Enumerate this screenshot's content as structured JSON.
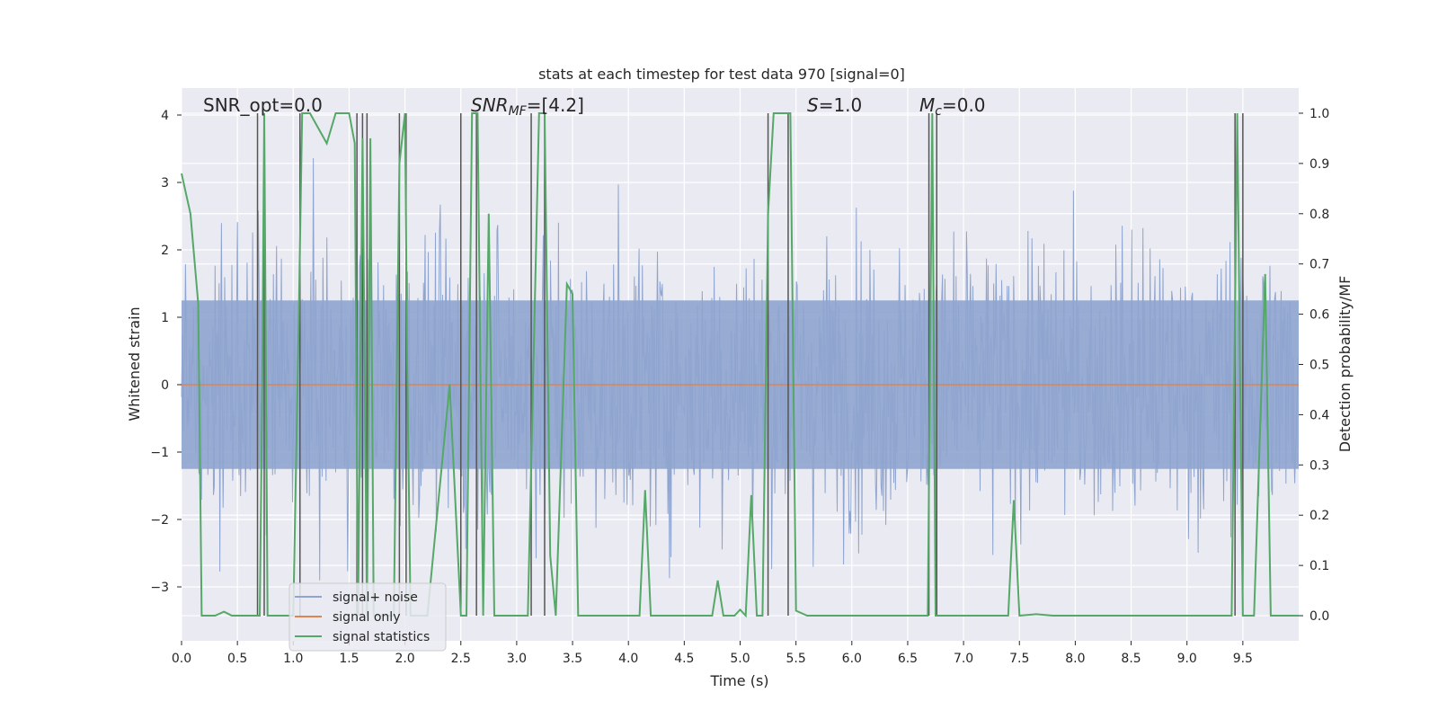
{
  "chart_data": {
    "type": "line",
    "title": "stats at each timestep for test data 970 [signal=0]",
    "xlabel": "Time (s)",
    "ylabel_left": "Whitened strain",
    "ylabel_right": "Detection probability/MF",
    "xlim": [
      0.0,
      10.0
    ],
    "ylim_left": [
      -3.8,
      4.4
    ],
    "ylim_right": [
      -0.05,
      1.05
    ],
    "x_ticks": [
      0.0,
      0.5,
      1.0,
      1.5,
      2.0,
      2.5,
      3.0,
      3.5,
      4.0,
      4.5,
      5.0,
      5.5,
      6.0,
      6.5,
      7.0,
      7.5,
      8.0,
      8.5,
      9.0,
      9.5
    ],
    "x_tick_labels": [
      "0.0",
      "0.5",
      "1.0",
      "1.5",
      "2.0",
      "2.5",
      "3.0",
      "3.5",
      "4.0",
      "4.5",
      "5.0",
      "5.5",
      "6.0",
      "6.5",
      "7.0",
      "7.5",
      "8.0",
      "8.5",
      "9.0",
      "9.5"
    ],
    "y_left_ticks": [
      -3,
      -2,
      -1,
      0,
      1,
      2,
      3,
      4
    ],
    "y_left_tick_labels": [
      "−3",
      "−2",
      "−1",
      "0",
      "1",
      "2",
      "3",
      "4"
    ],
    "y_right_ticks": [
      0.0,
      0.1,
      0.2,
      0.3,
      0.4,
      0.5,
      0.6,
      0.7,
      0.8,
      0.9,
      1.0
    ],
    "y_right_tick_labels": [
      "0.0",
      "0.1",
      "0.2",
      "0.3",
      "0.4",
      "0.5",
      "0.6",
      "0.7",
      "0.8",
      "0.9",
      "1.0"
    ],
    "grid": true,
    "legend_position": "lower-left",
    "annotations": {
      "snr_opt": "SNR_opt=0.0",
      "snr_mf_prefix": "SNR",
      "snr_mf_sub": "MF",
      "snr_mf_suffix": "=[4.2]",
      "s_prefix": "S",
      "s_suffix": "=1.0",
      "mc_prefix": "M",
      "mc_sub": "c",
      "mc_suffix": "=0.0"
    },
    "series": [
      {
        "name": "signal+ noise",
        "color": "#8fa5cf",
        "axis": "left",
        "noise_band": {
          "center": 0.0,
          "typical_amplitude": 1.9,
          "max_amplitude": 3.9
        }
      },
      {
        "name": "signal only",
        "color": "#dd8452",
        "axis": "left",
        "x": [
          0.0,
          10.0
        ],
        "y": [
          0.0,
          0.0
        ]
      },
      {
        "name": "signal statistics",
        "color": "#55a868",
        "axis": "right",
        "x": [
          0.0,
          0.08,
          0.15,
          0.18,
          0.3,
          0.38,
          0.45,
          0.5,
          0.7,
          0.72,
          0.74,
          0.77,
          0.8,
          0.9,
          1.0,
          1.05,
          1.08,
          1.15,
          1.3,
          1.38,
          1.5,
          1.55,
          1.58,
          1.62,
          1.66,
          1.69,
          1.72,
          1.9,
          1.95,
          2.0,
          2.02,
          2.05,
          2.2,
          2.4,
          2.5,
          2.55,
          2.6,
          2.65,
          2.7,
          2.75,
          2.8,
          2.9,
          3.0,
          3.1,
          3.2,
          3.25,
          3.3,
          3.35,
          3.45,
          3.5,
          3.55,
          4.0,
          4.1,
          4.15,
          4.2,
          4.5,
          4.75,
          4.8,
          4.85,
          4.95,
          5.0,
          5.05,
          5.1,
          5.15,
          5.2,
          5.25,
          5.3,
          5.4,
          5.45,
          5.5,
          5.6,
          6.6,
          6.68,
          6.72,
          6.75,
          6.8,
          7.3,
          7.4,
          7.45,
          7.5,
          7.65,
          7.8,
          9.35,
          9.4,
          9.45,
          9.5,
          9.55,
          9.6,
          9.7,
          9.75,
          10.0
        ],
        "y": [
          0.88,
          0.8,
          0.62,
          0.0,
          0.0,
          0.008,
          0.0,
          0.0,
          0.0,
          0.4,
          1.0,
          0.0,
          0.0,
          0.0,
          0.0,
          0.6,
          1.0,
          1.0,
          0.94,
          1.0,
          1.0,
          0.94,
          0.0,
          0.95,
          0.0,
          0.95,
          0.0,
          0.0,
          0.9,
          1.0,
          0.5,
          0.0,
          0.0,
          0.46,
          0.0,
          0.0,
          1.0,
          1.0,
          0.0,
          0.8,
          0.0,
          0.0,
          0.0,
          0.0,
          1.0,
          1.0,
          0.12,
          0.0,
          0.66,
          0.64,
          0.0,
          0.0,
          0.0,
          0.25,
          0.0,
          0.0,
          0.0,
          0.07,
          0.0,
          0.0,
          0.012,
          0.0,
          0.24,
          0.0,
          0.0,
          0.8,
          1.0,
          1.0,
          1.0,
          0.01,
          0.0,
          0.0,
          0.0,
          1.0,
          0.0,
          0.0,
          0.0,
          0.0,
          0.23,
          0.0,
          0.003,
          0.0,
          0.0,
          0.0,
          1.0,
          0.0,
          0.0,
          0.0,
          0.68,
          0.0,
          0.0
        ]
      }
    ],
    "vertical_markers": {
      "color": "#555555",
      "x": [
        0.68,
        0.74,
        1.06,
        1.57,
        1.62,
        1.66,
        1.95,
        2.01,
        2.5,
        2.64,
        3.13,
        3.25,
        5.25,
        5.43,
        6.69,
        6.76,
        9.43,
        9.5
      ]
    }
  }
}
